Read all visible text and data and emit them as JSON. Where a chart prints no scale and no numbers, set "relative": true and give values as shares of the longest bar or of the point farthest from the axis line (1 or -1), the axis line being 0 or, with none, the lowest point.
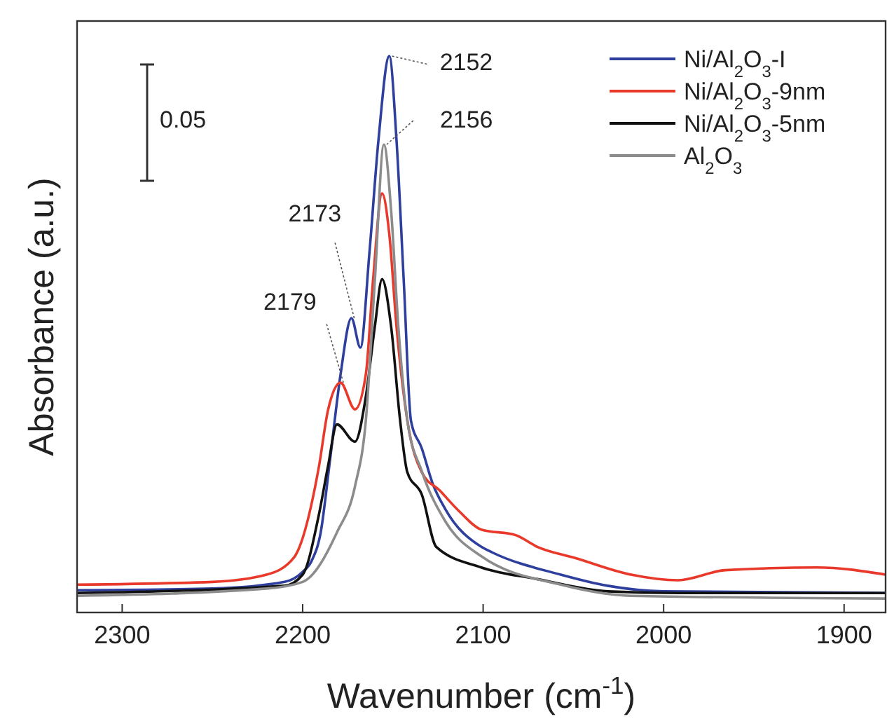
{
  "chart_data": {
    "type": "line",
    "xlabel": "Wavenumber (cm$^{-1}$)",
    "ylabel": "Absorbance (a.u.)",
    "relative": true,
    "xlim": [
      2325,
      1877
    ],
    "xticks": [
      2300,
      2200,
      2100,
      2000,
      1900
    ],
    "tick_labels": "x",
    "legend": "top right",
    "grid": false,
    "line_style": "solid",
    "annotations": [
      "0.05",
      {
        "text": "2152",
        "x": 2152,
        "y": 1
      },
      {
        "text": "2156",
        "x": 2155,
        "y": 0.841
      },
      {
        "text": "2173",
        "x": 2173,
        "y": 0.529
      },
      {
        "text": "2179",
        "x": 2179,
        "y": 0.413
      }
    ],
    "series": [
      {
        "name": "Ni/Al$_{2}$O$_{3}$-I",
        "color": "#2e3f9e",
        "x": [
          2325,
          2250,
          2210,
          2200,
          2195,
          2190,
          2185,
          2179,
          2173,
          2168,
          2163,
          2158,
          2152,
          2148,
          2144,
          2140,
          2134,
          2128,
          2121,
          2101,
          2095,
          2057,
          2031,
          2000,
          1877
        ],
        "values": [
          0.04,
          0.043,
          0.055,
          0.073,
          0.093,
          0.144,
          0.27,
          0.428,
          0.529,
          0.476,
          0.647,
          0.849,
          1,
          0.849,
          0.597,
          0.345,
          0.295,
          0.232,
          0.186,
          0.118,
          0.108,
          0.068,
          0.048,
          0.038,
          0.035
        ]
      },
      {
        "name": "Ni/Al$_{2}$O$_{3}$-9nm",
        "color": "#e8392a",
        "x": [
          2325,
          2250,
          2220,
          2205,
          2191,
          2186,
          2179,
          2171,
          2165,
          2161,
          2156,
          2152,
          2148,
          2142,
          2134,
          2124,
          2113,
          2101,
          2082,
          2070,
          2049,
          2018,
          1992,
          1966,
          1915,
          1877
        ],
        "values": [
          0.05,
          0.055,
          0.068,
          0.098,
          0.262,
          0.363,
          0.413,
          0.365,
          0.428,
          0.597,
          0.753,
          0.68,
          0.514,
          0.345,
          0.252,
          0.219,
          0.181,
          0.149,
          0.139,
          0.118,
          0.098,
          0.068,
          0.058,
          0.076,
          0.081,
          0.068
        ]
      },
      {
        "name": "Ni/Al$_{2}$O$_{3}$-5nm",
        "color": "#111111",
        "x": [
          2325,
          2210,
          2200,
          2191,
          2186,
          2181,
          2171,
          2165,
          2160,
          2156,
          2151,
          2146,
          2142,
          2134,
          2126,
          2101,
          2070,
          2031,
          1992,
          1877
        ],
        "values": [
          0.035,
          0.048,
          0.068,
          0.176,
          0.262,
          0.338,
          0.307,
          0.388,
          0.514,
          0.599,
          0.514,
          0.345,
          0.252,
          0.212,
          0.118,
          0.081,
          0.06,
          0.038,
          0.035,
          0.035
        ]
      },
      {
        "name": "Al$_{2}$O$_{3}$",
        "color": "#8c8c8c",
        "x": [
          2325,
          2220,
          2200,
          2181,
          2171,
          2165,
          2160,
          2155,
          2151,
          2147,
          2142,
          2134,
          2121,
          2101,
          2057,
          2018,
          1877
        ],
        "values": [
          0.03,
          0.043,
          0.055,
          0.144,
          0.227,
          0.345,
          0.597,
          0.841,
          0.723,
          0.514,
          0.345,
          0.254,
          0.164,
          0.101,
          0.05,
          0.03,
          0.025
        ]
      }
    ]
  }
}
